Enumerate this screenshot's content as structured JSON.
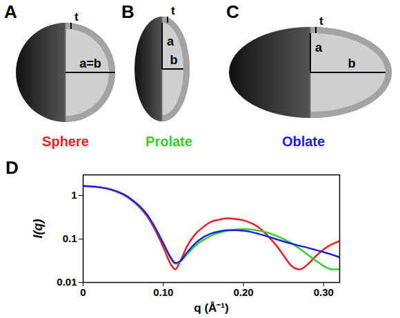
{
  "diagrams": [
    {
      "letter": "A",
      "shape": "sphere",
      "thickness_label": "t",
      "axis_labels": [
        "a=b"
      ]
    },
    {
      "letter": "B",
      "shape": "prolate",
      "thickness_label": "t",
      "axis_labels": [
        "a",
        "b"
      ]
    },
    {
      "letter": "C",
      "shape": "oblate",
      "thickness_label": "t",
      "axis_labels": [
        "a",
        "b"
      ]
    }
  ],
  "chart_letter": "D",
  "chart_data": {
    "type": "line",
    "x_label": "q (Å⁻¹)",
    "y_label": "I(q)",
    "log": "y",
    "grid": false,
    "xlim": [
      0,
      0.32
    ],
    "xticks": [
      0,
      {
        "value": 0.1,
        "label": "0.10"
      },
      {
        "value": 0.2,
        "label": "0.20"
      },
      {
        "value": 0.3,
        "label": "0.30"
      }
    ],
    "ylim": [
      0.01,
      3
    ],
    "yticks": [
      0.01,
      0.1,
      1
    ],
    "x": [
      0,
      0.01,
      0.02,
      0.03,
      0.04,
      0.05,
      0.06,
      0.07,
      0.08,
      0.09,
      0.1,
      0.11,
      0.115,
      0.12,
      0.13,
      0.14,
      0.15,
      0.16,
      0.17,
      0.18,
      0.19,
      0.2,
      0.21,
      0.22,
      0.23,
      0.24,
      0.25,
      0.26,
      0.27,
      0.28,
      0.29,
      0.3,
      0.31,
      0.32
    ],
    "series": [
      {
        "name": "Sphere",
        "color": "#ee1c25",
        "values": [
          1.65,
          1.63,
          1.56,
          1.44,
          1.27,
          1.05,
          0.8,
          0.55,
          0.33,
          0.16,
          0.065,
          0.025,
          0.02,
          0.028,
          0.07,
          0.13,
          0.19,
          0.25,
          0.28,
          0.3,
          0.29,
          0.27,
          0.23,
          0.18,
          0.12,
          0.075,
          0.042,
          0.024,
          0.02,
          0.026,
          0.04,
          0.058,
          0.075,
          0.09
        ]
      },
      {
        "name": "Prolate",
        "color": "#2ed12e",
        "values": [
          1.65,
          1.63,
          1.56,
          1.45,
          1.29,
          1.08,
          0.83,
          0.58,
          0.36,
          0.18,
          0.08,
          0.034,
          0.027,
          0.029,
          0.045,
          0.07,
          0.095,
          0.12,
          0.14,
          0.155,
          0.165,
          0.17,
          0.165,
          0.155,
          0.14,
          0.12,
          0.1,
          0.08,
          0.06,
          0.044,
          0.032,
          0.024,
          0.02,
          0.02
        ]
      },
      {
        "name": "Oblate",
        "color": "#2020e8",
        "values": [
          1.65,
          1.63,
          1.56,
          1.45,
          1.29,
          1.08,
          0.83,
          0.58,
          0.36,
          0.18,
          0.08,
          0.036,
          0.028,
          0.03,
          0.05,
          0.08,
          0.11,
          0.135,
          0.15,
          0.16,
          0.16,
          0.155,
          0.145,
          0.13,
          0.115,
          0.1,
          0.088,
          0.078,
          0.07,
          0.063,
          0.056,
          0.05,
          0.044,
          0.038
        ]
      }
    ]
  }
}
